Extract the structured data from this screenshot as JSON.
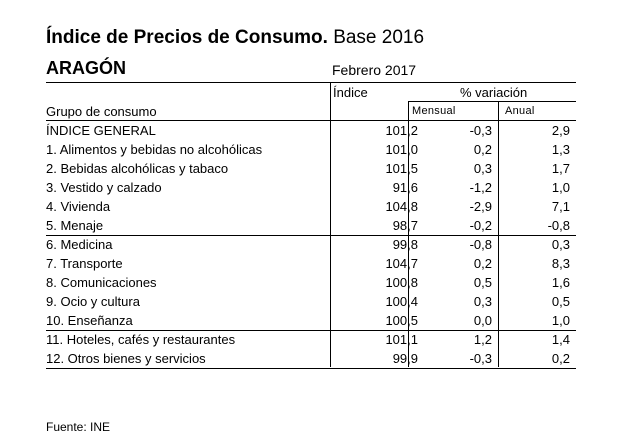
{
  "header": {
    "title_bold": "Índice de Precios de Consumo.",
    "title_rest": "Base 2016",
    "region": "ARAGÓN",
    "date": "Febrero 2017"
  },
  "table": {
    "col_indice": "Índice",
    "col_variacion": "% variación",
    "col_group": "Grupo de consumo",
    "col_mensual": "Mensual",
    "col_anual": "Anual",
    "rows": [
      {
        "label": "ÍNDICE GENERAL",
        "indice": "101,2",
        "mensual": "-0,3",
        "anual": "2,9"
      },
      {
        "label": "1. Alimentos y bebidas no alcohólicas",
        "indice": "101,0",
        "mensual": "0,2",
        "anual": "1,3"
      },
      {
        "label": "2. Bebidas alcohólicas y tabaco",
        "indice": "101,5",
        "mensual": "0,3",
        "anual": "1,7"
      },
      {
        "label": "3. Vestido y calzado",
        "indice": "91,6",
        "mensual": "-1,2",
        "anual": "1,0"
      },
      {
        "label": "4. Vivienda",
        "indice": "104,8",
        "mensual": "-2,9",
        "anual": "7,1"
      },
      {
        "label": "5. Menaje",
        "indice": "98,7",
        "mensual": "-0,2",
        "anual": "-0,8"
      },
      {
        "label": "6. Medicina",
        "indice": "99,8",
        "mensual": "-0,8",
        "anual": "0,3"
      },
      {
        "label": "7. Transporte",
        "indice": "104,7",
        "mensual": "0,2",
        "anual": "8,3"
      },
      {
        "label": "8. Comunicaciones",
        "indice": "100,8",
        "mensual": "0,5",
        "anual": "1,6"
      },
      {
        "label": "9. Ocio y cultura",
        "indice": "100,4",
        "mensual": "0,3",
        "anual": "0,5"
      },
      {
        "label": "10. Enseñanza",
        "indice": "100,5",
        "mensual": "0,0",
        "anual": "1,0"
      },
      {
        "label": "11. Hoteles, cafés y restaurantes",
        "indice": "101,1",
        "mensual": "1,2",
        "anual": "1,4"
      },
      {
        "label": "12. Otros bienes y servicios",
        "indice": "99,9",
        "mensual": "-0,3",
        "anual": "0,2"
      }
    ]
  },
  "footer": {
    "source": "Fuente: INE"
  }
}
